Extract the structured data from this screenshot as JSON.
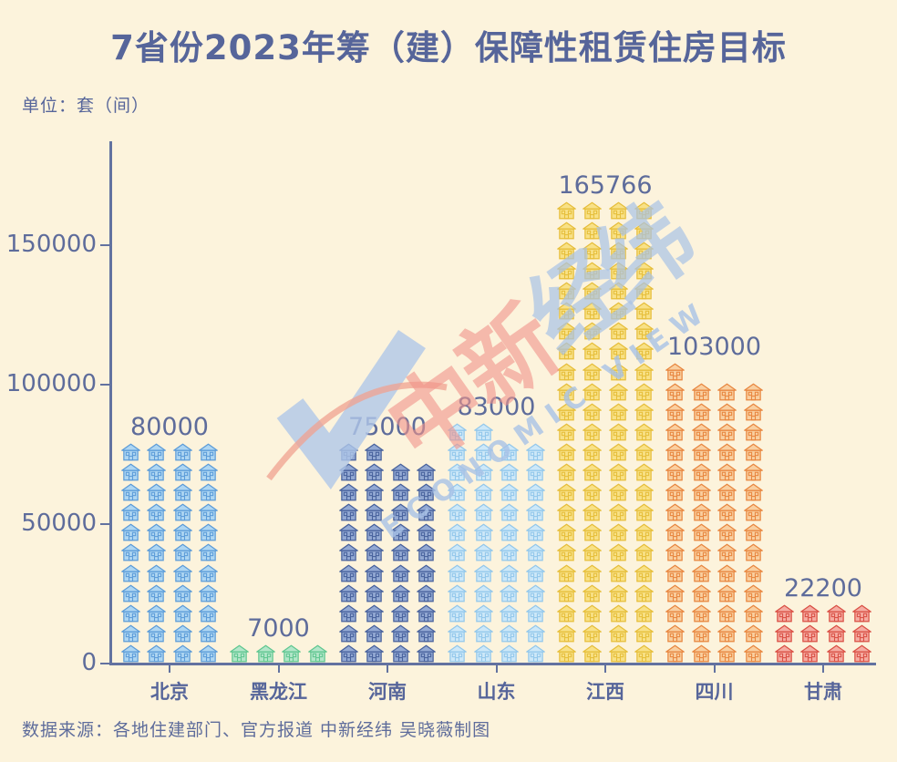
{
  "title": "7省份2023年筹（建）保障性租赁住房目标",
  "unit_label": "单位：套（间）",
  "source_note": "数据来源：各地住建部门、官方报道 中新经纬 吴晓薇制图",
  "watermark": {
    "zh_red": "中新",
    "zh_blue": "经纬",
    "en_text": "ECONOMIC VIEW",
    "red_color": "#F2948B",
    "blue_color": "#A9C3E7"
  },
  "colors": {
    "background": "#FCF3DC",
    "text_primary": "#56659A",
    "axis": "#6272A0",
    "label": "#5E6C9B"
  },
  "chart_data": {
    "type": "bar",
    "subtype": "pictogram",
    "title": "7省份2023年筹（建）保障性租赁住房目标",
    "xlabel": "",
    "ylabel": "单位：套（间）",
    "categories": [
      "北京",
      "黑龙江",
      "河南",
      "山东",
      "江西",
      "四川",
      "甘肃"
    ],
    "values": [
      80000,
      7000,
      75000,
      83000,
      165766,
      103000,
      22200
    ],
    "icon": "house-icon",
    "icon_counts": [
      44,
      4,
      42,
      46,
      92,
      57,
      12
    ],
    "icons_per_row": 4,
    "units_per_icon": 1800,
    "y_ticks": [
      0,
      50000,
      100000,
      150000
    ],
    "ylim": [
      0,
      175000
    ],
    "grid": false,
    "legend": false,
    "bar_colors": [
      {
        "fill": "#AED6F2",
        "stroke": "#5B9BD8"
      },
      {
        "fill": "#B3E6C9",
        "stroke": "#5FC690"
      },
      {
        "fill": "#93A9D3",
        "stroke": "#47619C"
      },
      {
        "fill": "#CDE8F8",
        "stroke": "#92C7EB"
      },
      {
        "fill": "#F8E187",
        "stroke": "#E6BE3A"
      },
      {
        "fill": "#F9CFA0",
        "stroke": "#E8863F"
      },
      {
        "fill": "#F5ACA2",
        "stroke": "#D94F44"
      }
    ]
  }
}
